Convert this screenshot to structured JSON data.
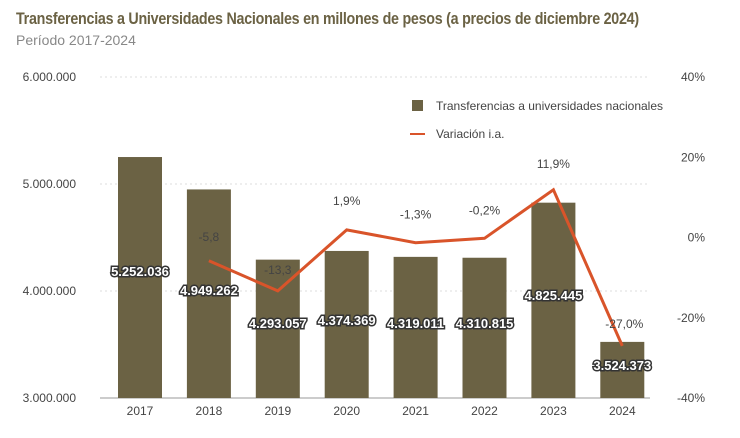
{
  "title": "Transferencias a Universidades Nacionales en millones de pesos (a precios de diciembre 2024)",
  "subtitle": "Período 2017-2024",
  "chart_data": {
    "type": "bar+line",
    "categories": [
      "2017",
      "2018",
      "2019",
      "2020",
      "2021",
      "2022",
      "2023",
      "2024"
    ],
    "series": [
      {
        "name": "Transferencias a universidades nacionales",
        "type": "bar",
        "axis": "left",
        "color": "#6b6244",
        "values": [
          5252036,
          4949262,
          4293057,
          4374369,
          4319011,
          4310815,
          4825445,
          3524373
        ],
        "labels": [
          "5.252.036",
          "4.949.262",
          "4.293.057",
          "4.374.369",
          "4.319.011",
          "4.310.815",
          "4.825.445",
          "3.524.373"
        ]
      },
      {
        "name": "Variación i.a.",
        "type": "line",
        "axis": "right",
        "color": "#d9542a",
        "values": [
          null,
          -5.8,
          -13.3,
          1.9,
          -1.3,
          -0.2,
          11.9,
          -27.0
        ],
        "labels": [
          "",
          "-5,8",
          "-13,3",
          "1,9%",
          "-1,3%",
          "-0,2%",
          "11,9%",
          "-27,0%"
        ]
      }
    ],
    "y_left": {
      "range": [
        3000000,
        6000000
      ],
      "ticks": [
        3000000,
        4000000,
        5000000,
        6000000
      ],
      "tick_labels": [
        "3.000.000",
        "4.000.000",
        "5.000.000",
        "6.000.000"
      ]
    },
    "y_right": {
      "range": [
        -40,
        40
      ],
      "ticks": [
        -40,
        -20,
        0,
        20,
        40
      ],
      "tick_labels": [
        "-40%",
        "-20%",
        "0%",
        "20%",
        "40%"
      ]
    },
    "grid": true,
    "legend": "top-right"
  }
}
